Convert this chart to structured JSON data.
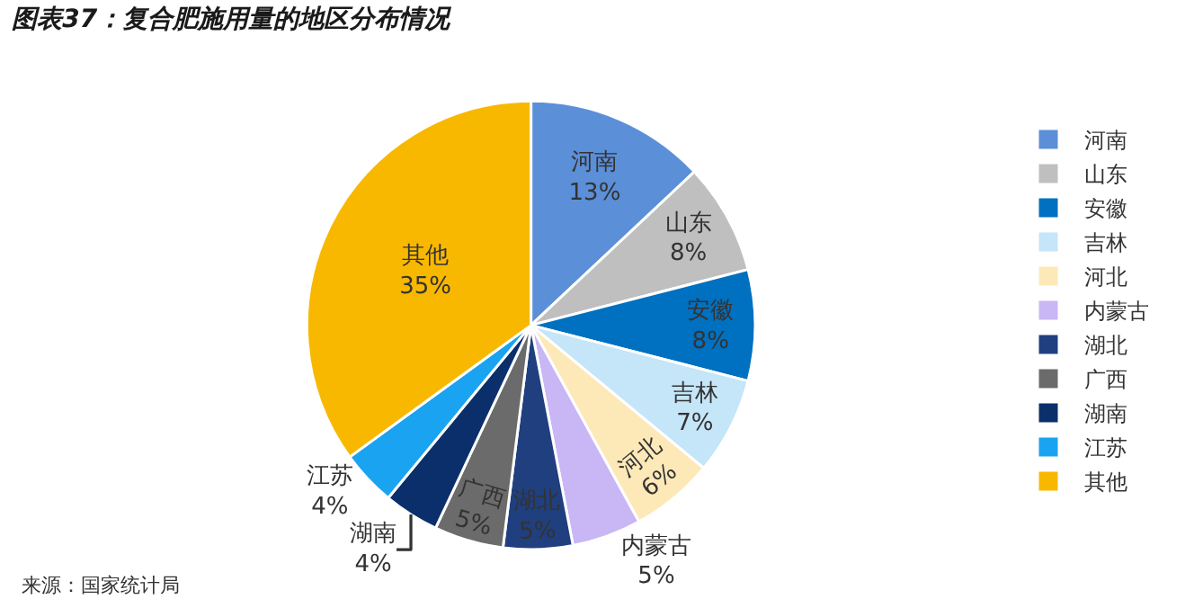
{
  "chart_data": {
    "type": "pie",
    "title": "图表37：复合肥施用量的地区分布情况",
    "categories": [
      "河南",
      "山东",
      "安徽",
      "吉林",
      "河北",
      "内蒙古",
      "湖北",
      "广西",
      "湖南",
      "江苏",
      "其他"
    ],
    "values": [
      13,
      8,
      8,
      7,
      6,
      5,
      5,
      5,
      4,
      4,
      35
    ],
    "value_labels": [
      "13%",
      "8%",
      "8%",
      "7%",
      "6%",
      "5%",
      "5%",
      "5%",
      "4%",
      "4%",
      "35%"
    ],
    "colors": [
      "#5b8fd8",
      "#bfbfbf",
      "#0070c0",
      "#c5e5f8",
      "#fde9b8",
      "#c9b6f5",
      "#203f7f",
      "#6b6b6b",
      "#0b2f6b",
      "#1aa3f0",
      "#f9b800"
    ],
    "legend": "right",
    "annotations": [
      "来源：国家统计局"
    ]
  }
}
